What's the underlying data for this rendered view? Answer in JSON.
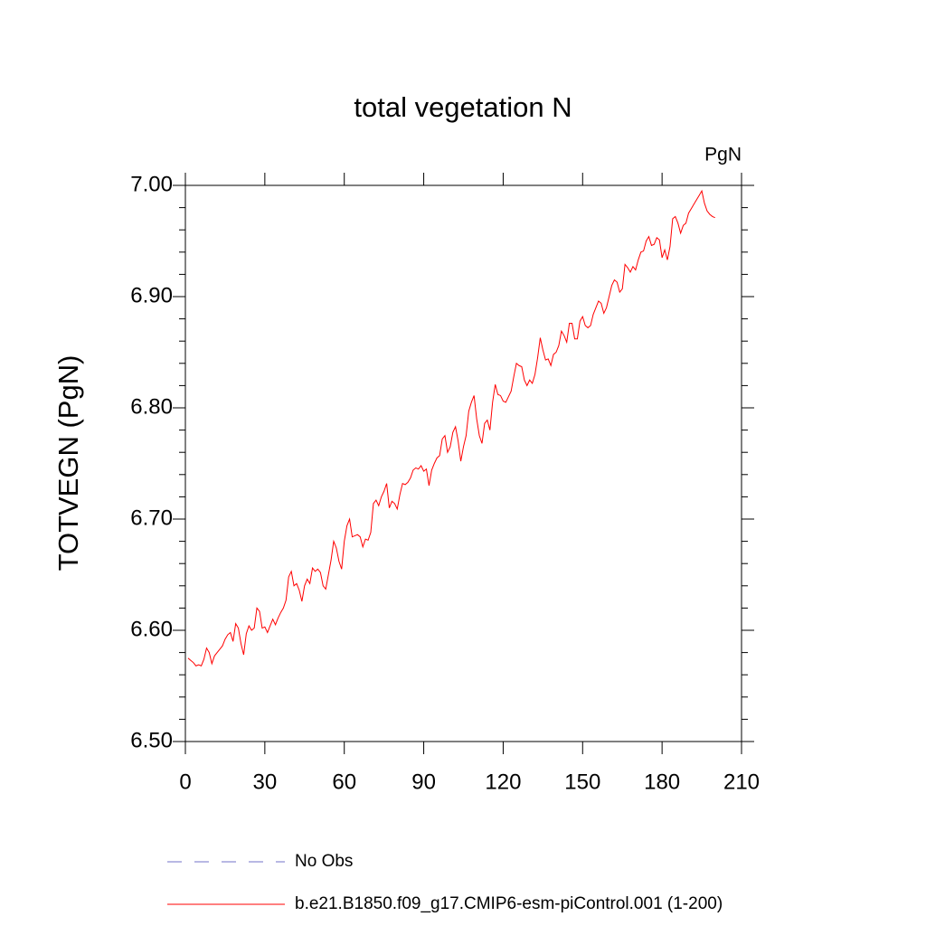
{
  "chart_data": {
    "type": "line",
    "title": "total vegetation N",
    "units": "PgN",
    "y_label": "TOTVEGN  (PgN)",
    "x": [
      1,
      2,
      3,
      4,
      5,
      6,
      7,
      8,
      9,
      10,
      11,
      12,
      13,
      14,
      15,
      16,
      17,
      18,
      19,
      20,
      21,
      22,
      23,
      24,
      25,
      26,
      27,
      28,
      29,
      30,
      31,
      32,
      33,
      34,
      35,
      36,
      37,
      38,
      39,
      40,
      41,
      42,
      43,
      44,
      45,
      46,
      47,
      48,
      49,
      50,
      51,
      52,
      53,
      54,
      55,
      56,
      57,
      58,
      59,
      60,
      61,
      62,
      63,
      64,
      65,
      66,
      67,
      68,
      69,
      70,
      71,
      72,
      73,
      74,
      75,
      76,
      77,
      78,
      79,
      80,
      81,
      82,
      83,
      84,
      85,
      86,
      87,
      88,
      89,
      90,
      91,
      92,
      93,
      94,
      95,
      96,
      97,
      98,
      99,
      100,
      101,
      102,
      103,
      104,
      105,
      106,
      107,
      108,
      109,
      110,
      111,
      112,
      113,
      114,
      115,
      116,
      117,
      118,
      119,
      120,
      121,
      122,
      123,
      124,
      125,
      126,
      127,
      128,
      129,
      130,
      131,
      132,
      133,
      134,
      135,
      136,
      137,
      138,
      139,
      140,
      141,
      142,
      143,
      144,
      145,
      146,
      147,
      148,
      149,
      150,
      151,
      152,
      153,
      154,
      155,
      156,
      157,
      158,
      159,
      160,
      161,
      162,
      163,
      164,
      165,
      166,
      167,
      168,
      169,
      170,
      171,
      172,
      173,
      174,
      175,
      176,
      177,
      178,
      179,
      180,
      181,
      182,
      183,
      184,
      185,
      186,
      187,
      188,
      189,
      190,
      191,
      192,
      193,
      194,
      195,
      196,
      197,
      198,
      199,
      200
    ],
    "series": [
      {
        "name": "No Obs",
        "color": "#7070c8",
        "dashed": true
      },
      {
        "name": "b.e21.B1850.f09_g17.CMIP6-esm-piControl.001 (1-200)",
        "color": "#ff0000",
        "values": [
          6.575,
          6.573,
          6.571,
          6.568,
          6.569,
          6.568,
          6.574,
          6.584,
          6.58,
          6.57,
          6.577,
          6.58,
          6.583,
          6.586,
          6.592,
          6.596,
          6.598,
          6.59,
          6.606,
          6.602,
          6.588,
          6.578,
          6.597,
          6.604,
          6.6,
          6.602,
          6.62,
          6.617,
          6.602,
          6.603,
          6.598,
          6.604,
          6.61,
          6.605,
          6.611,
          6.616,
          6.62,
          6.627,
          6.648,
          6.653,
          6.64,
          6.642,
          6.636,
          6.626,
          6.64,
          6.646,
          6.642,
          6.656,
          6.653,
          6.655,
          6.652,
          6.64,
          6.637,
          6.65,
          6.663,
          6.68,
          6.674,
          6.662,
          6.655,
          6.68,
          6.694,
          6.7,
          6.684,
          6.685,
          6.686,
          6.684,
          6.675,
          6.682,
          6.681,
          6.688,
          6.714,
          6.717,
          6.712,
          6.72,
          6.725,
          6.732,
          6.71,
          6.716,
          6.714,
          6.709,
          6.722,
          6.732,
          6.731,
          6.733,
          6.737,
          6.744,
          6.746,
          6.745,
          6.748,
          6.743,
          6.745,
          6.73,
          6.744,
          6.75,
          6.755,
          6.757,
          6.772,
          6.775,
          6.76,
          6.765,
          6.778,
          6.783,
          6.77,
          6.752,
          6.765,
          6.775,
          6.797,
          6.805,
          6.811,
          6.79,
          6.775,
          6.768,
          6.786,
          6.789,
          6.78,
          6.805,
          6.821,
          6.812,
          6.811,
          6.806,
          6.805,
          6.81,
          6.815,
          6.828,
          6.84,
          6.838,
          6.837,
          6.825,
          6.82,
          6.825,
          6.822,
          6.83,
          6.845,
          6.863,
          6.852,
          6.843,
          6.844,
          6.838,
          6.848,
          6.85,
          6.856,
          6.869,
          6.865,
          6.859,
          6.876,
          6.876,
          6.862,
          6.862,
          6.878,
          6.882,
          6.874,
          6.872,
          6.874,
          6.884,
          6.89,
          6.896,
          6.894,
          6.885,
          6.89,
          6.9,
          6.91,
          6.915,
          6.913,
          6.904,
          6.907,
          6.929,
          6.926,
          6.922,
          6.927,
          6.924,
          6.933,
          6.94,
          6.941,
          6.95,
          6.954,
          6.946,
          6.947,
          6.953,
          6.951,
          6.935,
          6.942,
          6.933,
          6.945,
          6.97,
          6.972,
          6.966,
          6.957,
          6.964,
          6.966,
          6.975,
          6.979,
          6.983,
          6.987,
          6.991,
          6.995,
          6.984,
          6.977,
          6.974,
          6.972,
          6.971
        ]
      }
    ],
    "xlim": [
      0,
      210
    ],
    "xticks": [
      0,
      30,
      60,
      90,
      120,
      150,
      180,
      210
    ],
    "ylim": [
      6.5,
      7.0
    ],
    "yticks": [
      {
        "value": 6.5,
        "label": "6.50"
      },
      {
        "value": 6.6,
        "label": "6.60"
      },
      {
        "value": 6.7,
        "label": "6.70"
      },
      {
        "value": 6.8,
        "label": "6.80"
      },
      {
        "value": 6.9,
        "label": "6.90"
      },
      {
        "value": 7.0,
        "label": "7.00"
      }
    ],
    "grid": false
  }
}
